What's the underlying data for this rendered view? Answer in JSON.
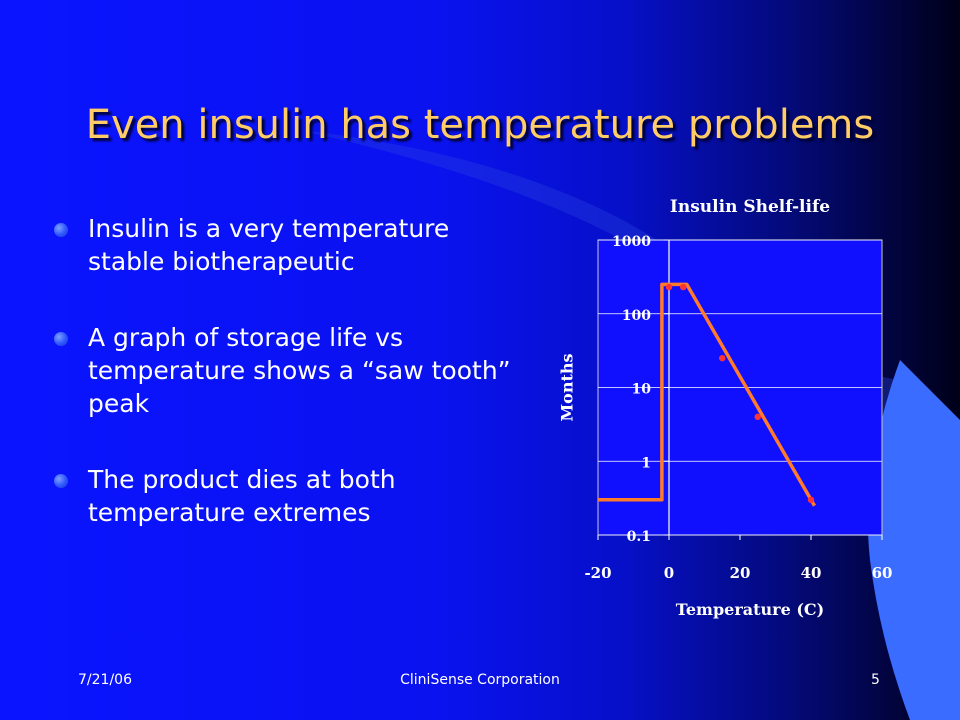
{
  "slide": {
    "title": "Even insulin has temperature problems",
    "bullets": [
      "Insulin is a very temperature stable biotherapeutic",
      "A graph of storage life vs temperature shows a “saw tooth”  peak",
      "The product dies at both temperature extremes"
    ],
    "footer": {
      "date": "7/21/06",
      "company": "CliniSense Corporation",
      "page": "5"
    },
    "colors": {
      "title": "#ffcc66",
      "background": "#0a14ff",
      "bullet": "#2d56ff",
      "accent": "#3a6cff"
    }
  },
  "chart_data": {
    "type": "line",
    "title": "Insulin Shelf-life",
    "xlabel": "Temperature (C)",
    "ylabel": "Months",
    "xlim": [
      -20,
      60
    ],
    "ylim": [
      0.1,
      1000
    ],
    "yscale": "log",
    "xticks": [
      "-20",
      "0",
      "20",
      "40",
      "60"
    ],
    "yticks": [
      "0.1",
      "1",
      "10",
      "100",
      "1000"
    ],
    "grid": "horizontal",
    "plot_background": "#1010ff",
    "series": [
      {
        "color": "#ff7a2a",
        "x": [
          -20,
          -2,
          -2,
          0,
          5,
          41
        ],
        "y": [
          0.3,
          0.3,
          250,
          250,
          250,
          0.25
        ]
      },
      {
        "color": "#ff3333",
        "markers": true,
        "x": [
          0,
          4,
          15,
          25,
          40
        ],
        "y": [
          230,
          230,
          25,
          4,
          0.3
        ]
      }
    ]
  }
}
